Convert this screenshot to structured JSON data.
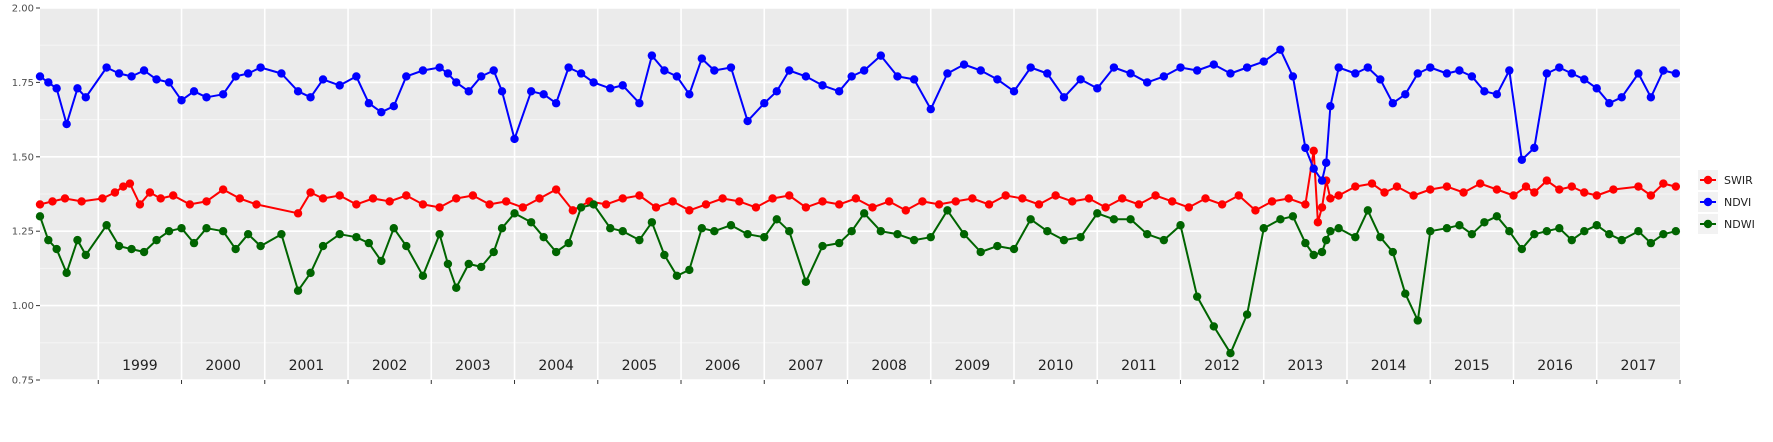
{
  "chart_data": {
    "type": "line",
    "title": "",
    "xlabel": "",
    "ylabel": "",
    "ylim": [
      0.75,
      2.0
    ],
    "xlim": [
      1998.3,
      2018.0
    ],
    "yticks": [
      "0.75",
      "1.00",
      "1.25",
      "1.50",
      "1.75",
      "2.00"
    ],
    "years": [
      "1999",
      "2000",
      "2001",
      "2002",
      "2003",
      "2004",
      "2005",
      "2006",
      "2007",
      "2008",
      "2009",
      "2010",
      "2011",
      "2012",
      "2013",
      "2014",
      "2015",
      "2016",
      "2017"
    ],
    "grid": true,
    "legend_position": "right",
    "series": [
      {
        "name": "SWIR",
        "color": "#ff0000",
        "x": [
          1998.3,
          1998.45,
          1998.6,
          1998.8,
          1999.05,
          1999.2,
          1999.3,
          1999.38,
          1999.5,
          1999.62,
          1999.75,
          1999.9,
          2000.1,
          2000.3,
          2000.5,
          2000.7,
          2000.9,
          2001.4,
          2001.55,
          2001.7,
          2001.9,
          2002.1,
          2002.3,
          2002.5,
          2002.7,
          2002.9,
          2003.1,
          2003.3,
          2003.5,
          2003.7,
          2003.9,
          2004.1,
          2004.3,
          2004.5,
          2004.7,
          2004.9,
          2005.1,
          2005.3,
          2005.5,
          2005.7,
          2005.9,
          2006.1,
          2006.3,
          2006.5,
          2006.7,
          2006.9,
          2007.1,
          2007.3,
          2007.5,
          2007.7,
          2007.9,
          2008.1,
          2008.3,
          2008.5,
          2008.7,
          2008.9,
          2009.1,
          2009.3,
          2009.5,
          2009.7,
          2009.9,
          2010.1,
          2010.3,
          2010.5,
          2010.7,
          2010.9,
          2011.1,
          2011.3,
          2011.5,
          2011.7,
          2011.9,
          2012.1,
          2012.3,
          2012.5,
          2012.7,
          2012.9,
          2013.1,
          2013.3,
          2013.5,
          2013.6,
          2013.65,
          2013.7,
          2013.75,
          2013.8,
          2013.9,
          2014.1,
          2014.3,
          2014.45,
          2014.6,
          2014.8,
          2015.0,
          2015.2,
          2015.4,
          2015.6,
          2015.8,
          2016.0,
          2016.15,
          2016.25,
          2016.4,
          2016.55,
          2016.7,
          2016.85,
          2017.0,
          2017.2,
          2017.5,
          2017.65,
          2017.8,
          2017.95
        ],
        "y": [
          1.34,
          1.35,
          1.36,
          1.35,
          1.36,
          1.38,
          1.4,
          1.41,
          1.34,
          1.38,
          1.36,
          1.37,
          1.34,
          1.35,
          1.39,
          1.36,
          1.34,
          1.31,
          1.38,
          1.36,
          1.37,
          1.34,
          1.36,
          1.35,
          1.37,
          1.34,
          1.33,
          1.36,
          1.37,
          1.34,
          1.35,
          1.33,
          1.36,
          1.39,
          1.32,
          1.35,
          1.34,
          1.36,
          1.37,
          1.33,
          1.35,
          1.32,
          1.34,
          1.36,
          1.35,
          1.33,
          1.36,
          1.37,
          1.33,
          1.35,
          1.34,
          1.36,
          1.33,
          1.35,
          1.32,
          1.35,
          1.34,
          1.35,
          1.36,
          1.34,
          1.37,
          1.36,
          1.34,
          1.37,
          1.35,
          1.36,
          1.33,
          1.36,
          1.34,
          1.37,
          1.35,
          1.33,
          1.36,
          1.34,
          1.37,
          1.32,
          1.35,
          1.36,
          1.34,
          1.52,
          1.28,
          1.33,
          1.42,
          1.36,
          1.37,
          1.4,
          1.41,
          1.38,
          1.4,
          1.37,
          1.39,
          1.4,
          1.38,
          1.41,
          1.39,
          1.37,
          1.4,
          1.38,
          1.42,
          1.39,
          1.4,
          1.38,
          1.37,
          1.39,
          1.4,
          1.37,
          1.41,
          1.4
        ]
      },
      {
        "name": "NDVI",
        "color": "#0000ff",
        "x": [
          1998.3,
          1998.4,
          1998.5,
          1998.62,
          1998.75,
          1998.85,
          1999.1,
          1999.25,
          1999.4,
          1999.55,
          1999.7,
          1999.85,
          2000.0,
          2000.15,
          2000.3,
          2000.5,
          2000.65,
          2000.8,
          2000.95,
          2001.2,
          2001.4,
          2001.55,
          2001.7,
          2001.9,
          2002.1,
          2002.25,
          2002.4,
          2002.55,
          2002.7,
          2002.9,
          2003.1,
          2003.2,
          2003.3,
          2003.45,
          2003.6,
          2003.75,
          2003.85,
          2004.0,
          2004.2,
          2004.35,
          2004.5,
          2004.65,
          2004.8,
          2004.95,
          2005.15,
          2005.3,
          2005.5,
          2005.65,
          2005.8,
          2005.95,
          2006.1,
          2006.25,
          2006.4,
          2006.6,
          2006.8,
          2007.0,
          2007.15,
          2007.3,
          2007.5,
          2007.7,
          2007.9,
          2008.05,
          2008.2,
          2008.4,
          2008.6,
          2008.8,
          2009.0,
          2009.2,
          2009.4,
          2009.6,
          2009.8,
          2010.0,
          2010.2,
          2010.4,
          2010.6,
          2010.8,
          2011.0,
          2011.2,
          2011.4,
          2011.6,
          2011.8,
          2012.0,
          2012.2,
          2012.4,
          2012.6,
          2012.8,
          2013.0,
          2013.2,
          2013.35,
          2013.5,
          2013.6,
          2013.7,
          2013.75,
          2013.8,
          2013.9,
          2014.1,
          2014.25,
          2014.4,
          2014.55,
          2014.7,
          2014.85,
          2015.0,
          2015.2,
          2015.35,
          2015.5,
          2015.65,
          2015.8,
          2015.95,
          2016.1,
          2016.25,
          2016.4,
          2016.55,
          2016.7,
          2016.85,
          2017.0,
          2017.15,
          2017.3,
          2017.5,
          2017.65,
          2017.8,
          2017.95
        ],
        "y": [
          1.77,
          1.75,
          1.73,
          1.61,
          1.73,
          1.7,
          1.8,
          1.78,
          1.77,
          1.79,
          1.76,
          1.75,
          1.69,
          1.72,
          1.7,
          1.71,
          1.77,
          1.78,
          1.8,
          1.78,
          1.72,
          1.7,
          1.76,
          1.74,
          1.77,
          1.68,
          1.65,
          1.67,
          1.77,
          1.79,
          1.8,
          1.78,
          1.75,
          1.72,
          1.77,
          1.79,
          1.72,
          1.56,
          1.72,
          1.71,
          1.68,
          1.8,
          1.78,
          1.75,
          1.73,
          1.74,
          1.68,
          1.84,
          1.79,
          1.77,
          1.71,
          1.83,
          1.79,
          1.8,
          1.62,
          1.68,
          1.72,
          1.79,
          1.77,
          1.74,
          1.72,
          1.77,
          1.79,
          1.84,
          1.77,
          1.76,
          1.66,
          1.78,
          1.81,
          1.79,
          1.76,
          1.72,
          1.8,
          1.78,
          1.7,
          1.76,
          1.73,
          1.8,
          1.78,
          1.75,
          1.77,
          1.8,
          1.79,
          1.81,
          1.78,
          1.8,
          1.82,
          1.86,
          1.77,
          1.53,
          1.46,
          1.42,
          1.48,
          1.67,
          1.8,
          1.78,
          1.8,
          1.76,
          1.68,
          1.71,
          1.78,
          1.8,
          1.78,
          1.79,
          1.77,
          1.72,
          1.71,
          1.79,
          1.49,
          1.53,
          1.78,
          1.8,
          1.78,
          1.76,
          1.73,
          1.68,
          1.7,
          1.78,
          1.7,
          1.79,
          1.78
        ]
      },
      {
        "name": "NDWI",
        "color": "#006400",
        "x": [
          1998.3,
          1998.4,
          1998.5,
          1998.62,
          1998.75,
          1998.85,
          1999.1,
          1999.25,
          1999.4,
          1999.55,
          1999.7,
          1999.85,
          2000.0,
          2000.15,
          2000.3,
          2000.5,
          2000.65,
          2000.8,
          2000.95,
          2001.2,
          2001.4,
          2001.55,
          2001.7,
          2001.9,
          2002.1,
          2002.25,
          2002.4,
          2002.55,
          2002.7,
          2002.9,
          2003.1,
          2003.2,
          2003.3,
          2003.45,
          2003.6,
          2003.75,
          2003.85,
          2004.0,
          2004.2,
          2004.35,
          2004.5,
          2004.65,
          2004.8,
          2004.95,
          2005.15,
          2005.3,
          2005.5,
          2005.65,
          2005.8,
          2005.95,
          2006.1,
          2006.25,
          2006.4,
          2006.6,
          2006.8,
          2007.0,
          2007.15,
          2007.3,
          2007.5,
          2007.7,
          2007.9,
          2008.05,
          2008.2,
          2008.4,
          2008.6,
          2008.8,
          2009.0,
          2009.2,
          2009.4,
          2009.6,
          2009.8,
          2010.0,
          2010.2,
          2010.4,
          2010.6,
          2010.8,
          2011.0,
          2011.2,
          2011.4,
          2011.6,
          2011.8,
          2012.0,
          2012.2,
          2012.4,
          2012.6,
          2012.8,
          2013.0,
          2013.2,
          2013.35,
          2013.5,
          2013.6,
          2013.7,
          2013.75,
          2013.8,
          2013.9,
          2014.1,
          2014.25,
          2014.4,
          2014.55,
          2014.7,
          2014.85,
          2015.0,
          2015.2,
          2015.35,
          2015.5,
          2015.65,
          2015.8,
          2015.95,
          2016.1,
          2016.25,
          2016.4,
          2016.55,
          2016.7,
          2016.85,
          2017.0,
          2017.15,
          2017.3,
          2017.5,
          2017.65,
          2017.8,
          2017.95
        ],
        "y": [
          1.3,
          1.22,
          1.19,
          1.11,
          1.22,
          1.17,
          1.27,
          1.2,
          1.19,
          1.18,
          1.22,
          1.25,
          1.26,
          1.21,
          1.26,
          1.25,
          1.19,
          1.24,
          1.2,
          1.24,
          1.05,
          1.11,
          1.2,
          1.24,
          1.23,
          1.21,
          1.15,
          1.26,
          1.2,
          1.1,
          1.24,
          1.14,
          1.06,
          1.14,
          1.13,
          1.18,
          1.26,
          1.31,
          1.28,
          1.23,
          1.18,
          1.21,
          1.33,
          1.34,
          1.26,
          1.25,
          1.22,
          1.28,
          1.17,
          1.1,
          1.12,
          1.26,
          1.25,
          1.27,
          1.24,
          1.23,
          1.29,
          1.25,
          1.08,
          1.2,
          1.21,
          1.25,
          1.31,
          1.25,
          1.24,
          1.22,
          1.23,
          1.32,
          1.24,
          1.18,
          1.2,
          1.19,
          1.29,
          1.25,
          1.22,
          1.23,
          1.31,
          1.29,
          1.29,
          1.24,
          1.22,
          1.27,
          1.03,
          0.93,
          0.84,
          0.97,
          1.26,
          1.29,
          1.3,
          1.21,
          1.17,
          1.18,
          1.22,
          1.25,
          1.26,
          1.23,
          1.32,
          1.23,
          1.18,
          1.04,
          0.95,
          1.25,
          1.26,
          1.27,
          1.24,
          1.28,
          1.3,
          1.25,
          1.19,
          1.24,
          1.25,
          1.26,
          1.22,
          1.25,
          1.27,
          1.24,
          1.22,
          1.25,
          1.21,
          1.24,
          1.25
        ]
      }
    ]
  }
}
